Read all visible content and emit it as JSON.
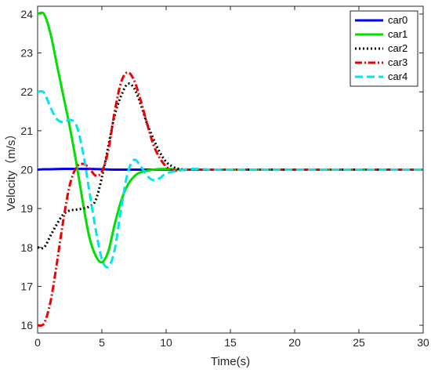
{
  "chart_data": {
    "type": "line",
    "xlabel": "Time(s)",
    "ylabel": "Velocity（m/s）",
    "xlim": [
      0,
      30
    ],
    "ylim": [
      15.8,
      24.2
    ],
    "xticks": [
      0,
      5,
      10,
      15,
      20,
      25,
      30
    ],
    "yticks": [
      16,
      17,
      18,
      19,
      20,
      21,
      22,
      23,
      24
    ],
    "grid": false,
    "legend_position": "top-right",
    "series": [
      {
        "name": "car0",
        "color": "#0000ff",
        "dash": "solid",
        "x": [
          0,
          0.5,
          1,
          2,
          3,
          4,
          5,
          6,
          8,
          10,
          15,
          30
        ],
        "y": [
          20.0,
          20.01,
          20.01,
          20.02,
          20.02,
          20.02,
          20.01,
          20.0,
          20.0,
          20.0,
          20.0,
          20.0
        ]
      },
      {
        "name": "car1",
        "color": "#00e000",
        "dash": "solid",
        "x": [
          0,
          0.5,
          1,
          1.5,
          2,
          2.5,
          3,
          3.5,
          4,
          4.5,
          5,
          5.5,
          6,
          6.5,
          7,
          7.5,
          8,
          9,
          10,
          11,
          12,
          15,
          30
        ],
        "y": [
          24.0,
          24.0,
          23.5,
          22.7,
          21.9,
          21.1,
          20.2,
          19.2,
          18.3,
          17.8,
          17.62,
          17.9,
          18.6,
          19.2,
          19.6,
          19.82,
          19.93,
          20.0,
          20.02,
          20.0,
          20.0,
          20.0,
          20.0
        ]
      },
      {
        "name": "car2",
        "color": "#000000",
        "dash": "dotted",
        "x": [
          0,
          0.5,
          1,
          1.5,
          2,
          2.5,
          3,
          3.5,
          4,
          4.5,
          5,
          5.5,
          6,
          6.5,
          7,
          7.5,
          8,
          8.5,
          9,
          9.5,
          10,
          10.5,
          11,
          12,
          15,
          30
        ],
        "y": [
          18.0,
          18.0,
          18.3,
          18.6,
          18.85,
          18.95,
          18.97,
          19.0,
          19.05,
          19.2,
          19.8,
          20.6,
          21.4,
          21.9,
          22.2,
          22.1,
          21.7,
          21.2,
          20.8,
          20.45,
          20.2,
          20.08,
          20.02,
          20.0,
          20.0,
          20.0
        ]
      },
      {
        "name": "car3",
        "color": "#ee0000",
        "dash": "dashdot",
        "x": [
          0,
          0.5,
          1,
          1.5,
          2,
          2.5,
          3,
          3.5,
          4,
          4.5,
          5,
          5.5,
          6,
          6.5,
          7,
          7.5,
          8,
          8.5,
          9,
          9.5,
          10,
          10.5,
          11,
          12,
          15,
          30
        ],
        "y": [
          16.0,
          16.05,
          16.6,
          17.6,
          18.7,
          19.6,
          20.05,
          20.15,
          20.05,
          19.85,
          19.95,
          20.5,
          21.5,
          22.25,
          22.5,
          22.3,
          21.8,
          21.2,
          20.65,
          20.3,
          20.08,
          19.98,
          19.98,
          20.0,
          20.0,
          20.0
        ]
      },
      {
        "name": "car4",
        "color": "#00e5ee",
        "dash": "dashed",
        "x": [
          0,
          0.5,
          1,
          1.5,
          2,
          2.5,
          3,
          3.5,
          4,
          4.5,
          5,
          5.5,
          6,
          6.5,
          7,
          7.5,
          8,
          8.5,
          9,
          9.5,
          10,
          11,
          12,
          13,
          15,
          30
        ],
        "y": [
          22.0,
          21.98,
          21.6,
          21.3,
          21.22,
          21.28,
          21.15,
          20.5,
          19.5,
          18.5,
          17.7,
          17.5,
          17.95,
          19.0,
          19.9,
          20.25,
          20.1,
          19.85,
          19.73,
          19.78,
          19.9,
          19.98,
          20.02,
          20.01,
          20.0,
          20.0
        ]
      }
    ]
  }
}
